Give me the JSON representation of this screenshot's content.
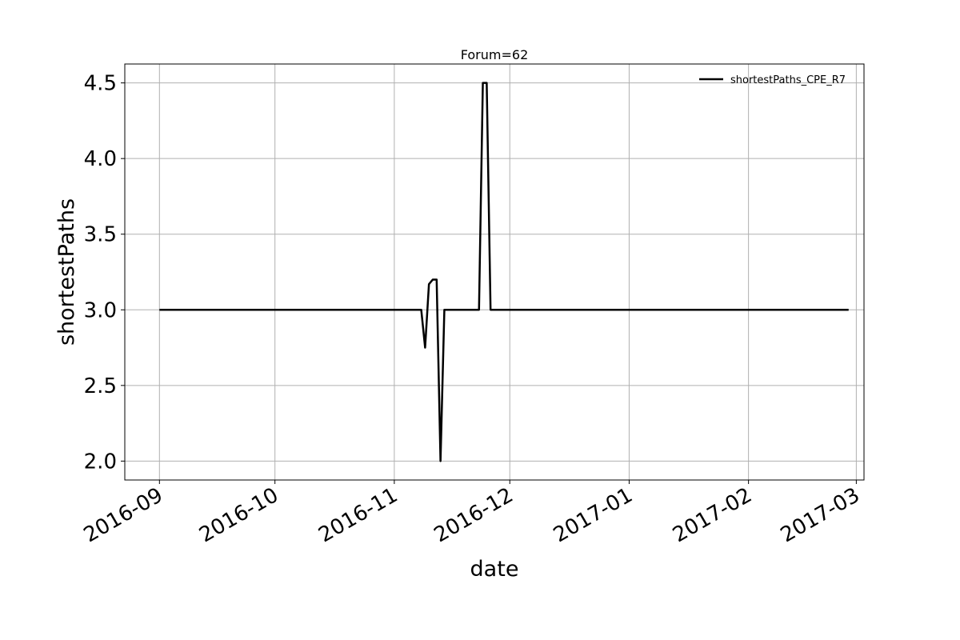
{
  "chart_data": {
    "type": "line",
    "title": "Forum=62",
    "xlabel": "date",
    "ylabel": "shortestPaths",
    "x_axis_kind": "date",
    "xlim": [
      "2016-08-23",
      "2017-03-03"
    ],
    "ylim": [
      1.875,
      4.625
    ],
    "x_ticks": [
      "2016-09",
      "2016-10",
      "2016-11",
      "2016-12",
      "2017-01",
      "2017-02",
      "2017-03"
    ],
    "x_tick_dates": [
      "2016-09-01",
      "2016-10-01",
      "2016-11-01",
      "2016-12-01",
      "2017-01-01",
      "2017-02-01",
      "2017-03-01"
    ],
    "y_ticks": [
      "2.0",
      "2.5",
      "3.0",
      "3.5",
      "4.0",
      "4.5"
    ],
    "y_tick_values": [
      2.0,
      2.5,
      3.0,
      3.5,
      4.0,
      4.5
    ],
    "grid": true,
    "legend_position": "top-right",
    "line_color": "#000000",
    "series": [
      {
        "name": "shortestPaths_CPE_R7",
        "points": [
          {
            "x": "2016-09-01",
            "y": 3.0
          },
          {
            "x": "2016-11-08",
            "y": 3.0
          },
          {
            "x": "2016-11-09",
            "y": 2.75
          },
          {
            "x": "2016-11-10",
            "y": 3.17
          },
          {
            "x": "2016-11-11",
            "y": 3.2
          },
          {
            "x": "2016-11-12",
            "y": 3.2
          },
          {
            "x": "2016-11-13",
            "y": 2.0
          },
          {
            "x": "2016-11-14",
            "y": 3.0
          },
          {
            "x": "2016-11-23",
            "y": 3.0
          },
          {
            "x": "2016-11-24",
            "y": 4.5
          },
          {
            "x": "2016-11-25",
            "y": 4.5
          },
          {
            "x": "2016-11-26",
            "y": 3.0
          },
          {
            "x": "2017-02-27",
            "y": 3.0
          }
        ]
      }
    ]
  }
}
